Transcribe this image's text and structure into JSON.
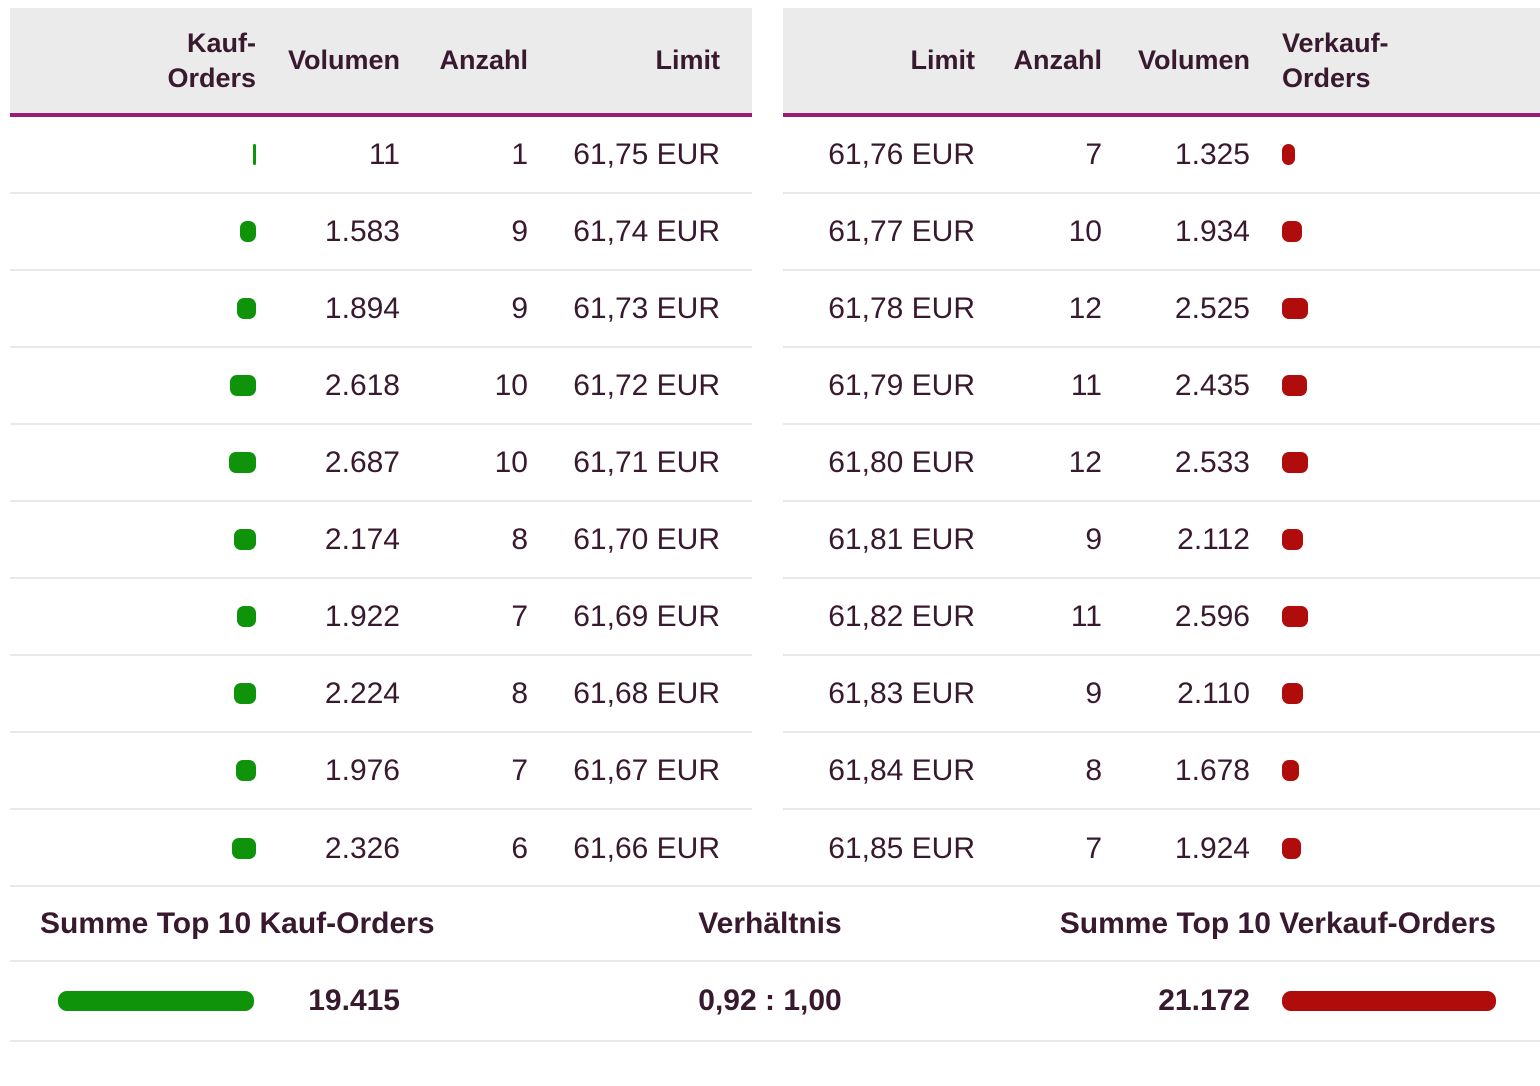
{
  "colors": {
    "accent_rule": "#9a1a74",
    "buy_green": "#0e930a",
    "sell_red": "#b10c0c",
    "text_plum": "#38192e",
    "header_bg": "#ebebeb",
    "divider": "#e9e9e9"
  },
  "buy_table": {
    "headers": {
      "orders": "Kauf-\nOrders",
      "volume": "Volumen",
      "count": "Anzahl",
      "limit": "Limit"
    },
    "rows": [
      {
        "volume_label": "11",
        "volume": 11,
        "count": "1",
        "limit": "61,75 EUR"
      },
      {
        "volume_label": "1.583",
        "volume": 1583,
        "count": "9",
        "limit": "61,74 EUR"
      },
      {
        "volume_label": "1.894",
        "volume": 1894,
        "count": "9",
        "limit": "61,73 EUR"
      },
      {
        "volume_label": "2.618",
        "volume": 2618,
        "count": "10",
        "limit": "61,72 EUR"
      },
      {
        "volume_label": "2.687",
        "volume": 2687,
        "count": "10",
        "limit": "61,71 EUR"
      },
      {
        "volume_label": "2.174",
        "volume": 2174,
        "count": "8",
        "limit": "61,70 EUR"
      },
      {
        "volume_label": "1.922",
        "volume": 1922,
        "count": "7",
        "limit": "61,69 EUR"
      },
      {
        "volume_label": "2.224",
        "volume": 2224,
        "count": "8",
        "limit": "61,68 EUR"
      },
      {
        "volume_label": "1.976",
        "volume": 1976,
        "count": "7",
        "limit": "61,67 EUR"
      },
      {
        "volume_label": "2.326",
        "volume": 2326,
        "count": "6",
        "limit": "61,66 EUR"
      }
    ]
  },
  "sell_table": {
    "headers": {
      "limit": "Limit",
      "count": "Anzahl",
      "volume": "Volumen",
      "orders": "Verkauf-\nOrders"
    },
    "rows": [
      {
        "limit": "61,76 EUR",
        "count": "7",
        "volume_label": "1.325",
        "volume": 1325
      },
      {
        "limit": "61,77 EUR",
        "count": "10",
        "volume_label": "1.934",
        "volume": 1934
      },
      {
        "limit": "61,78 EUR",
        "count": "12",
        "volume_label": "2.525",
        "volume": 2525
      },
      {
        "limit": "61,79 EUR",
        "count": "11",
        "volume_label": "2.435",
        "volume": 2435
      },
      {
        "limit": "61,80 EUR",
        "count": "12",
        "volume_label": "2.533",
        "volume": 2533
      },
      {
        "limit": "61,81 EUR",
        "count": "9",
        "volume_label": "2.112",
        "volume": 2112
      },
      {
        "limit": "61,82 EUR",
        "count": "11",
        "volume_label": "2.596",
        "volume": 2596
      },
      {
        "limit": "61,83 EUR",
        "count": "9",
        "volume_label": "2.110",
        "volume": 2110
      },
      {
        "limit": "61,84 EUR",
        "count": "8",
        "volume_label": "1.678",
        "volume": 1678
      },
      {
        "limit": "61,85 EUR",
        "count": "7",
        "volume_label": "1.924",
        "volume": 1924
      }
    ]
  },
  "summary": {
    "buy_label": "Summe Top 10 Kauf-Orders",
    "ratio_label": "Verhältnis",
    "sell_label": "Summe Top 10 Verkauf-Orders",
    "buy_total_label": "19.415",
    "buy_total": 19415,
    "ratio_value": "0,92 : 1,00",
    "sell_total_label": "21.172",
    "sell_total": 21172
  }
}
